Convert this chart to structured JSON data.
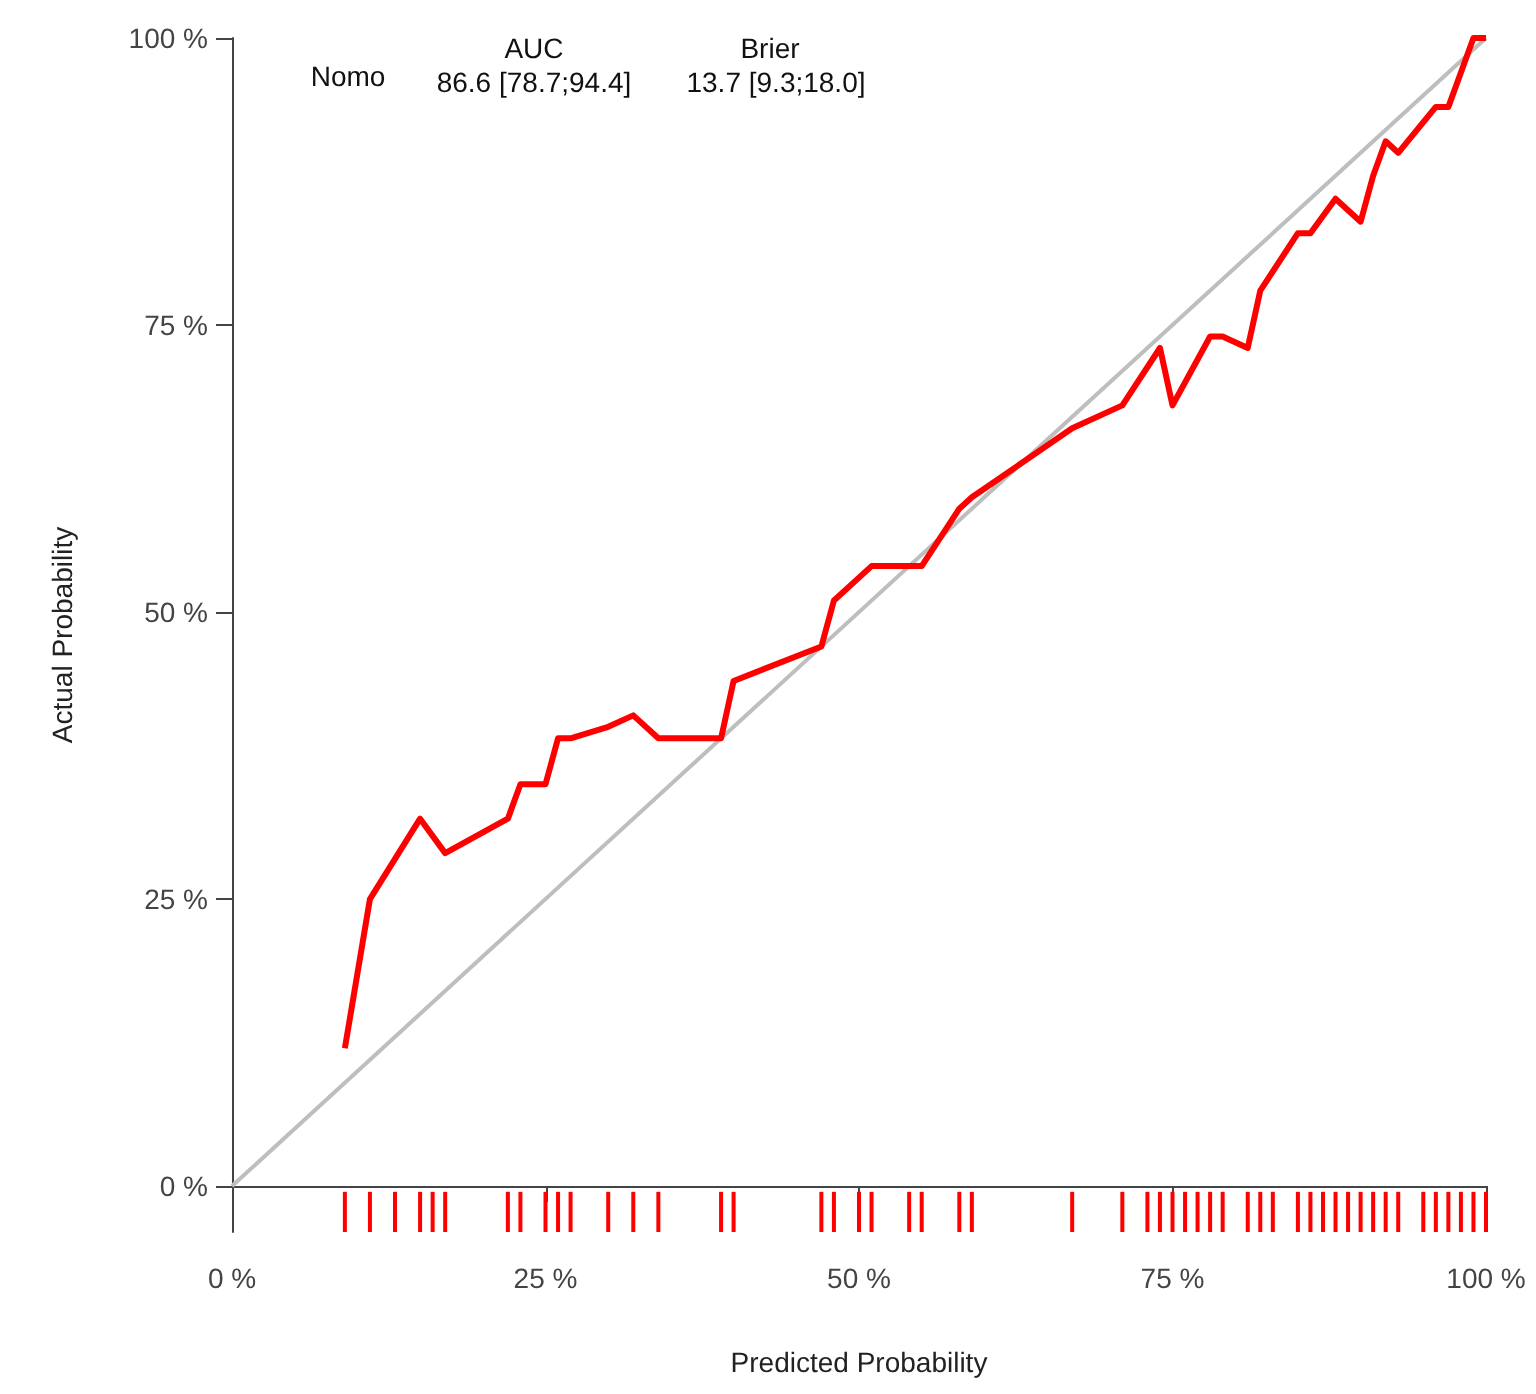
{
  "chart_data": {
    "type": "line",
    "xlabel": "Predicted Probability",
    "ylabel": "Actual Probability",
    "annotations": [
      "Nomo",
      "AUC",
      "86.6 [78.7;94.4]",
      "Brier",
      "13.7 [9.3;18.0]"
    ],
    "xlim": [
      0,
      100
    ],
    "ylim": [
      -4,
      100
    ],
    "xticks": [
      {
        "value": 0,
        "label": "0 %"
      },
      {
        "value": 25,
        "label": "25 %"
      },
      {
        "value": 50,
        "label": "50 %"
      },
      {
        "value": 75,
        "label": "75 %"
      },
      {
        "value": 100,
        "label": "100 %"
      }
    ],
    "yticks": [
      {
        "value": 0,
        "label": "0 %"
      },
      {
        "value": 25,
        "label": "25 %"
      },
      {
        "value": 50,
        "label": "50 %"
      },
      {
        "value": 75,
        "label": "75 %"
      },
      {
        "value": 100,
        "label": "100 %"
      }
    ],
    "series": [
      {
        "color": "#bebebe",
        "x": [
          0,
          100
        ],
        "values": [
          0,
          100
        ]
      },
      {
        "color": "#ff0000",
        "x": [
          9,
          11,
          15,
          17,
          22,
          23,
          25,
          26,
          27,
          30,
          32,
          34,
          39,
          40,
          47,
          48,
          50,
          51,
          54,
          55,
          58,
          59,
          67,
          71,
          74,
          75,
          77,
          78,
          79,
          81,
          82,
          85,
          86,
          88,
          90,
          91,
          92,
          93,
          96,
          97,
          98,
          99,
          100
        ],
        "values": [
          12,
          25,
          32,
          29,
          32,
          35,
          35,
          39,
          39,
          40,
          41,
          39,
          39,
          44,
          47,
          51,
          53,
          54,
          54,
          54,
          59,
          60,
          66,
          68,
          73,
          68,
          72,
          74,
          74,
          73,
          78,
          83,
          83,
          86,
          84,
          88,
          91,
          90,
          94,
          94,
          97,
          100,
          100
        ]
      },
      {
        "type": "bar",
        "color": "#ff0000",
        "x": [
          9,
          11,
          13,
          15,
          16,
          17,
          22,
          23,
          25,
          26,
          27,
          30,
          32,
          34,
          39,
          40,
          47,
          48,
          50,
          51,
          54,
          55,
          58,
          59,
          67,
          71,
          73,
          74,
          75,
          76,
          77,
          78,
          79,
          81,
          82,
          83,
          85,
          86,
          87,
          88,
          89,
          90,
          91,
          92,
          93,
          95,
          96,
          97,
          98,
          99,
          100
        ],
        "base": [
          -4,
          -4,
          -4,
          -4,
          -4,
          -4,
          -4,
          -4,
          -4,
          -4,
          -4,
          -4,
          -4,
          -4,
          -4,
          -4,
          -4,
          -4,
          -4,
          -4,
          -4,
          -4,
          -4,
          -4,
          -4,
          -4,
          -4,
          -4,
          -4,
          -4,
          -4,
          -4,
          -4,
          -4,
          -4,
          -4,
          -4,
          -4,
          -4,
          -4,
          -4,
          -4,
          -4,
          -4,
          -4,
          -4,
          -4,
          -4,
          -4,
          -4,
          -4
        ],
        "values": [
          3.5,
          3.5,
          3.5,
          3.5,
          3.5,
          3.5,
          3.5,
          3.5,
          3.5,
          3.5,
          3.5,
          3.5,
          3.5,
          3.5,
          3.5,
          3.5,
          3.5,
          3.5,
          3.5,
          3.5,
          3.5,
          3.5,
          3.5,
          3.5,
          3.5,
          3.5,
          3.5,
          3.5,
          3.5,
          3.5,
          3.5,
          3.5,
          3.5,
          3.5,
          3.5,
          3.5,
          3.5,
          3.5,
          3.5,
          3.5,
          3.5,
          3.5,
          3.5,
          3.5,
          3.5,
          3.5,
          3.5,
          3.5,
          3.5,
          3.5,
          3.5
        ]
      }
    ]
  }
}
